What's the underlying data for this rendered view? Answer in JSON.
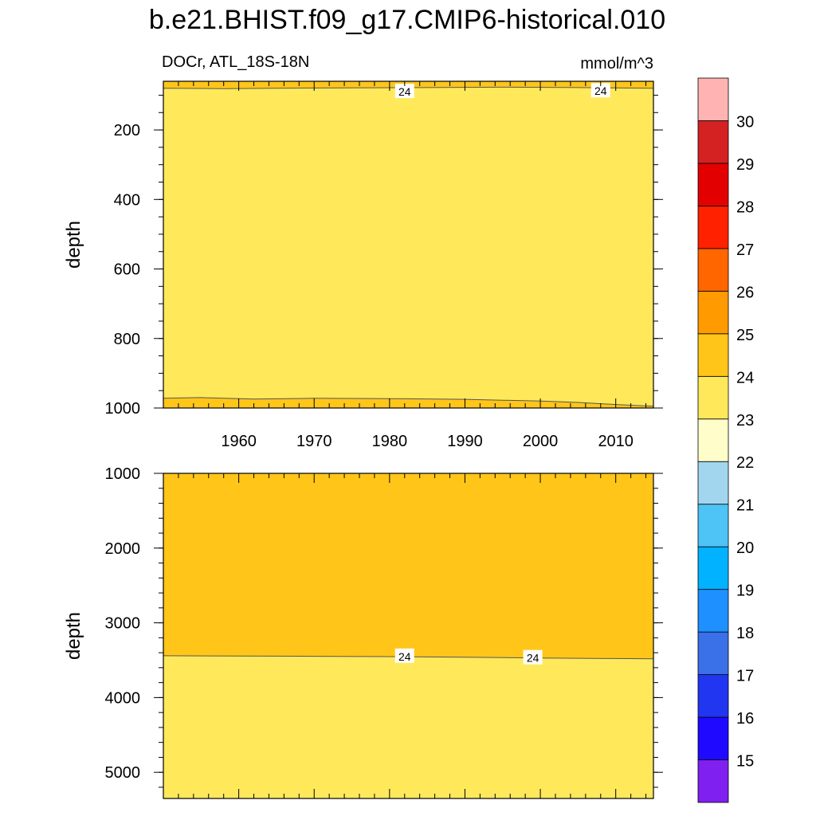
{
  "title": "b.e21.BHIST.f09_g17.CMIP6-historical.010",
  "chart_data": {
    "type": "heatmap",
    "subtitle_left": "DOCr, ATL_18S-18N",
    "subtitle_right": "mmol/m^3",
    "ylabel": "depth",
    "xlim": [
      1950,
      2015
    ],
    "x_ticks": [
      1960,
      1970,
      1980,
      1990,
      2000,
      2010
    ],
    "panels": [
      {
        "name": "upper",
        "ylim": [
          1000,
          0
        ],
        "y_view": [
          1000,
          60
        ],
        "y_ticks": [
          200,
          400,
          600,
          800,
          1000
        ],
        "contour_24_upper": {
          "x": [
            1950,
            1958,
            1965,
            1975,
            1985,
            1995,
            2005,
            2015
          ],
          "depth": [
            80,
            81,
            80,
            79,
            78,
            77,
            78,
            80
          ]
        },
        "contour_24_lower": {
          "x": [
            1950,
            1955,
            1962,
            1970,
            1980,
            1990,
            2000,
            2005,
            2010,
            2015
          ],
          "depth": [
            972,
            970,
            974,
            972,
            973,
            975,
            980,
            984,
            990,
            995
          ]
        },
        "contour_labels": [
          {
            "text": "24",
            "x": 1982,
            "depth": 90
          },
          {
            "text": "24",
            "x": 2008,
            "depth": 88
          }
        ]
      },
      {
        "name": "lower",
        "ylim": [
          1000,
          5350
        ],
        "y_ticks": [
          1000,
          2000,
          3000,
          4000,
          5000
        ],
        "contour_24": {
          "x": [
            1950,
            1960,
            1970,
            1980,
            1990,
            2000,
            2010,
            2015
          ],
          "depth": [
            3440,
            3445,
            3448,
            3452,
            3460,
            3470,
            3478,
            3482
          ]
        },
        "contour_labels": [
          {
            "text": "24",
            "x": 1982,
            "depth": 3450
          },
          {
            "text": "24",
            "x": 1999,
            "depth": 3470
          }
        ]
      }
    ],
    "colorbar": {
      "labels": [
        "15",
        "16",
        "17",
        "18",
        "19",
        "20",
        "21",
        "22",
        "23",
        "24",
        "25",
        "26",
        "27",
        "28",
        "29",
        "30"
      ],
      "colors": [
        "#7f1ff0",
        "#1f0aff",
        "#2136f0",
        "#3a70e8",
        "#1e90ff",
        "#00b2ff",
        "#4ec3f5",
        "#a2d6ef",
        "#fffdc9",
        "#ffe95a",
        "#ffc619",
        "#ff9a00",
        "#ff6600",
        "#ff2100",
        "#e30000",
        "#d42222",
        "#ffb3b3"
      ]
    }
  }
}
